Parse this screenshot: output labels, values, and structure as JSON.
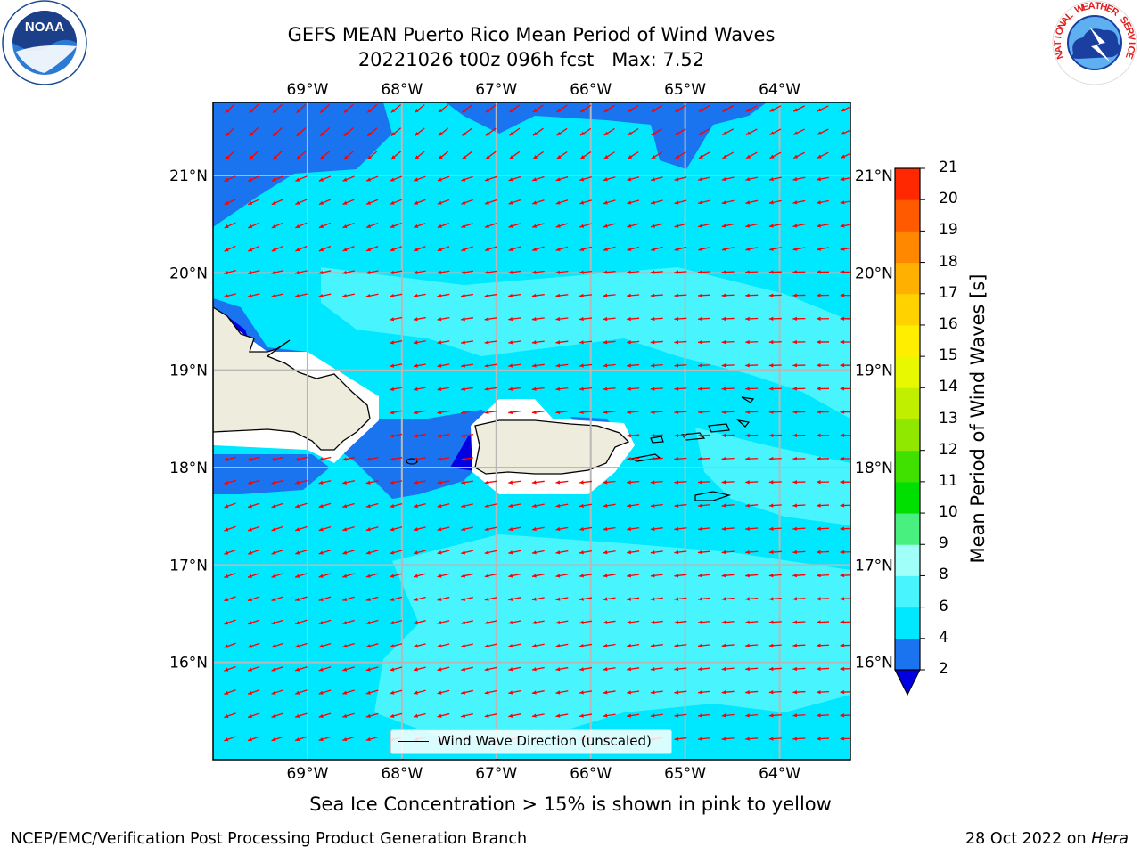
{
  "title": {
    "line1": "GEFS MEAN Puerto Rico Mean Period of Wind Waves",
    "line2": "20221026 t00z 096h fcst   Max: 7.52"
  },
  "map": {
    "lon_labels": [
      "69°W",
      "68°W",
      "67°W",
      "66°W",
      "65°W",
      "64°W"
    ],
    "lat_labels": [
      "21°N",
      "20°N",
      "19°N",
      "18°N",
      "17°N",
      "16°N"
    ],
    "lon_range": [
      -70.0,
      -63.25
    ],
    "lat_range": [
      15.0,
      21.75
    ],
    "gridlines": true,
    "field": "Mean Period of Wind Waves [s]",
    "field_max": 7.52,
    "land_color": "#eeecdc",
    "vector_color": "#ff0000",
    "vector_field": "Wind Wave Direction (unscaled)",
    "vector_direction": "predominantly toward west / southwest"
  },
  "legend": {
    "label": "Wind Wave Direction (unscaled)"
  },
  "colorbar": {
    "label": "Mean Period of Wind Waves [s]",
    "ticks": [
      "2",
      "4",
      "6",
      "8",
      "9",
      "10",
      "11",
      "12",
      "13",
      "14",
      "15",
      "16",
      "17",
      "18",
      "19",
      "20",
      "21"
    ],
    "colors": [
      "#1a74f0",
      "#00e8ff",
      "#48f5ff",
      "#a0fff8",
      "#48f080",
      "#00e000",
      "#40e000",
      "#90e800",
      "#c0f000",
      "#e8f800",
      "#ffee00",
      "#ffd200",
      "#ffb000",
      "#ff8800",
      "#ff5a00",
      "#ff2800"
    ],
    "under_color": "#0000e0"
  },
  "subtitle": "Sea Ice Concentration > 15% is shown in pink to yellow",
  "footer": {
    "left": "NCEP/EMC/Verification Post Processing Product Generation Branch",
    "right_prefix": "28 Oct 2022 on ",
    "right_host": "Hera"
  },
  "logos": {
    "left": "NOAA",
    "left_ring": "NATIONAL OCEANIC AND ATMOSPHERIC ADMINISTRATION · U.S. DEPARTMENT OF COMMERCE",
    "right_ring": "NATIONAL WEATHER SERVICE"
  }
}
